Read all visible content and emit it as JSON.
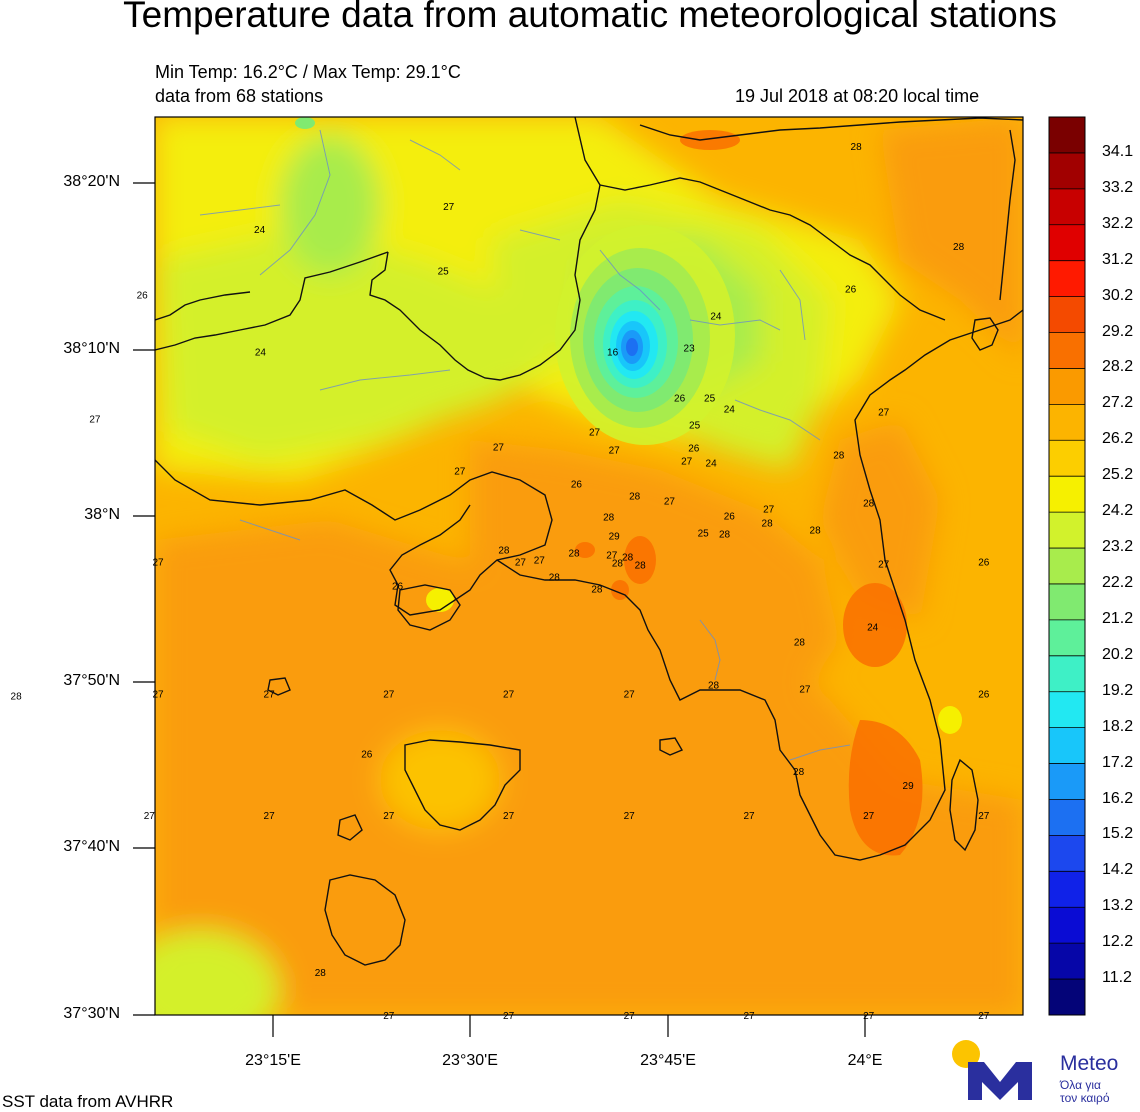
{
  "title": "Temperature data from automatic meteorological stations",
  "summary": {
    "min_max": "Min Temp: 16.2°C / Max Temp: 29.1°C",
    "stations": "data from 68 stations",
    "timestamp": "19 Jul 2018 at 08:20 local time"
  },
  "axes": {
    "lat_labels": [
      "38°20'N",
      "38°10'N",
      "38°N",
      "37°50'N",
      "37°40'N",
      "37°30'N"
    ],
    "lon_labels": [
      "23°15'E",
      "23°30'E",
      "23°45'E",
      "24°E"
    ]
  },
  "colorbar": {
    "labels": [
      "34.1",
      "33.2",
      "32.2",
      "31.2",
      "30.2",
      "29.2",
      "28.2",
      "27.2",
      "26.2",
      "25.2",
      "24.2",
      "23.2",
      "22.2",
      "21.2",
      "20.2",
      "19.2",
      "18.2",
      "17.2",
      "16.2",
      "15.2",
      "14.2",
      "13.2",
      "12.2",
      "11.2"
    ],
    "colors": [
      "#7a0000",
      "#a10000",
      "#c80000",
      "#e00000",
      "#ff1a00",
      "#f44a00",
      "#f97000",
      "#fa9a00",
      "#fcb400",
      "#fcce00",
      "#f6f000",
      "#d2f22c",
      "#a8ec4c",
      "#80ea70",
      "#5ef09a",
      "#3ef0c6",
      "#22e8f2",
      "#18c6fa",
      "#1a9af8",
      "#1c70f2",
      "#1c48ee",
      "#1022e8",
      "#0a0cd4",
      "#0606a8",
      "#040478"
    ]
  },
  "stations": [
    {
      "v": "28",
      "lon": 23.99,
      "lat": 38.37
    },
    {
      "v": "27",
      "lon": 23.473,
      "lat": 38.31
    },
    {
      "v": "24",
      "lon": 23.233,
      "lat": 38.287
    },
    {
      "v": "28",
      "lon": 24.12,
      "lat": 38.27
    },
    {
      "v": "25",
      "lon": 23.466,
      "lat": 38.245
    },
    {
      "v": "26",
      "lon": 23.084,
      "lat": 38.221
    },
    {
      "v": "26",
      "lon": 23.983,
      "lat": 38.227
    },
    {
      "v": "24",
      "lon": 23.812,
      "lat": 38.2
    },
    {
      "v": "23",
      "lon": 23.778,
      "lat": 38.168
    },
    {
      "v": "16",
      "lon": 23.681,
      "lat": 38.164
    },
    {
      "v": "24",
      "lon": 23.234,
      "lat": 38.164
    },
    {
      "v": "27",
      "lon": 23.024,
      "lat": 38.097
    },
    {
      "v": "26",
      "lon": 23.766,
      "lat": 38.118
    },
    {
      "v": "25",
      "lon": 23.804,
      "lat": 38.118
    },
    {
      "v": "24",
      "lon": 23.829,
      "lat": 38.107
    },
    {
      "v": "27",
      "lon": 24.025,
      "lat": 38.104
    },
    {
      "v": "25",
      "lon": 23.785,
      "lat": 38.091
    },
    {
      "v": "27",
      "lon": 23.658,
      "lat": 38.084
    },
    {
      "v": "27",
      "lon": 23.536,
      "lat": 38.069
    },
    {
      "v": "27",
      "lon": 23.683,
      "lat": 38.066
    },
    {
      "v": "26",
      "lon": 23.784,
      "lat": 38.068
    },
    {
      "v": "28",
      "lon": 23.968,
      "lat": 38.061
    },
    {
      "v": "27",
      "lon": 23.775,
      "lat": 38.055
    },
    {
      "v": "24",
      "lon": 23.806,
      "lat": 38.053
    },
    {
      "v": "27",
      "lon": 23.487,
      "lat": 38.045
    },
    {
      "v": "26",
      "lon": 23.635,
      "lat": 38.032
    },
    {
      "v": "28",
      "lon": 23.709,
      "lat": 38.02
    },
    {
      "v": "27",
      "lon": 23.753,
      "lat": 38.015
    },
    {
      "v": "28",
      "lon": 24.006,
      "lat": 38.013
    },
    {
      "v": "27",
      "lon": 23.879,
      "lat": 38.007
    },
    {
      "v": "26",
      "lon": 23.829,
      "lat": 38.0
    },
    {
      "v": "28",
      "lon": 23.676,
      "lat": 37.999
    },
    {
      "v": "28",
      "lon": 23.877,
      "lat": 37.993
    },
    {
      "v": "28",
      "lon": 23.938,
      "lat": 37.986
    },
    {
      "v": "29",
      "lon": 23.683,
      "lat": 37.98
    },
    {
      "v": "25",
      "lon": 23.796,
      "lat": 37.983
    },
    {
      "v": "28",
      "lon": 23.823,
      "lat": 37.982
    },
    {
      "v": "28",
      "lon": 23.543,
      "lat": 37.966
    },
    {
      "v": "28",
      "lon": 23.632,
      "lat": 37.963
    },
    {
      "v": "27",
      "lon": 23.68,
      "lat": 37.961
    },
    {
      "v": "28",
      "lon": 23.7,
      "lat": 37.959
    },
    {
      "v": "27",
      "lon": 23.564,
      "lat": 37.954
    },
    {
      "v": "28",
      "lon": 23.687,
      "lat": 37.953
    },
    {
      "v": "28",
      "lon": 23.716,
      "lat": 37.951
    },
    {
      "v": "27",
      "lon": 23.588,
      "lat": 37.956
    },
    {
      "v": "27",
      "lon": 23.104,
      "lat": 37.954
    },
    {
      "v": "27",
      "lon": 24.025,
      "lat": 37.952
    },
    {
      "v": "26",
      "lon": 24.152,
      "lat": 37.954
    },
    {
      "v": "28",
      "lon": 23.607,
      "lat": 37.939
    },
    {
      "v": "26",
      "lon": 23.408,
      "lat": 37.93
    },
    {
      "v": "28",
      "lon": 23.661,
      "lat": 37.927
    },
    {
      "v": "24",
      "lon": 24.011,
      "lat": 37.889
    },
    {
      "v": "28",
      "lon": 23.918,
      "lat": 37.874
    },
    {
      "v": "28",
      "lon": 23.809,
      "lat": 37.831
    },
    {
      "v": "28",
      "lon": 22.924,
      "lat": 37.82
    },
    {
      "v": "27",
      "lon": 23.104,
      "lat": 37.822
    },
    {
      "v": "27",
      "lon": 23.245,
      "lat": 37.822
    },
    {
      "v": "27",
      "lon": 23.397,
      "lat": 37.822
    },
    {
      "v": "27",
      "lon": 23.549,
      "lat": 37.822
    },
    {
      "v": "27",
      "lon": 23.702,
      "lat": 37.822
    },
    {
      "v": "27",
      "lon": 23.925,
      "lat": 37.827
    },
    {
      "v": "26",
      "lon": 24.152,
      "lat": 37.822
    },
    {
      "v": "26",
      "lon": 23.369,
      "lat": 37.762
    },
    {
      "v": "28",
      "lon": 23.917,
      "lat": 37.744
    },
    {
      "v": "29",
      "lon": 24.056,
      "lat": 37.73
    },
    {
      "v": "27",
      "lon": 23.093,
      "lat": 37.7
    },
    {
      "v": "27",
      "lon": 23.245,
      "lat": 37.7
    },
    {
      "v": "27",
      "lon": 23.397,
      "lat": 37.7
    },
    {
      "v": "27",
      "lon": 23.549,
      "lat": 37.7
    },
    {
      "v": "27",
      "lon": 23.702,
      "lat": 37.7
    },
    {
      "v": "27",
      "lon": 23.854,
      "lat": 37.7
    },
    {
      "v": "27",
      "lon": 24.006,
      "lat": 37.7
    },
    {
      "v": "27",
      "lon": 24.152,
      "lat": 37.7
    },
    {
      "v": "28",
      "lon": 23.31,
      "lat": 37.543
    },
    {
      "v": "27",
      "lon": 23.397,
      "lat": 37.5
    },
    {
      "v": "27",
      "lon": 23.549,
      "lat": 37.5
    },
    {
      "v": "27",
      "lon": 23.702,
      "lat": 37.5
    },
    {
      "v": "27",
      "lon": 23.854,
      "lat": 37.5
    },
    {
      "v": "27",
      "lon": 24.006,
      "lat": 37.5
    },
    {
      "v": "27",
      "lon": 24.152,
      "lat": 37.5
    }
  ],
  "footer": {
    "sst": "SST data from AVHRR",
    "brand": "Meteo",
    "tagline_1": "Όλα για",
    "tagline_2": "τον καιρό"
  }
}
